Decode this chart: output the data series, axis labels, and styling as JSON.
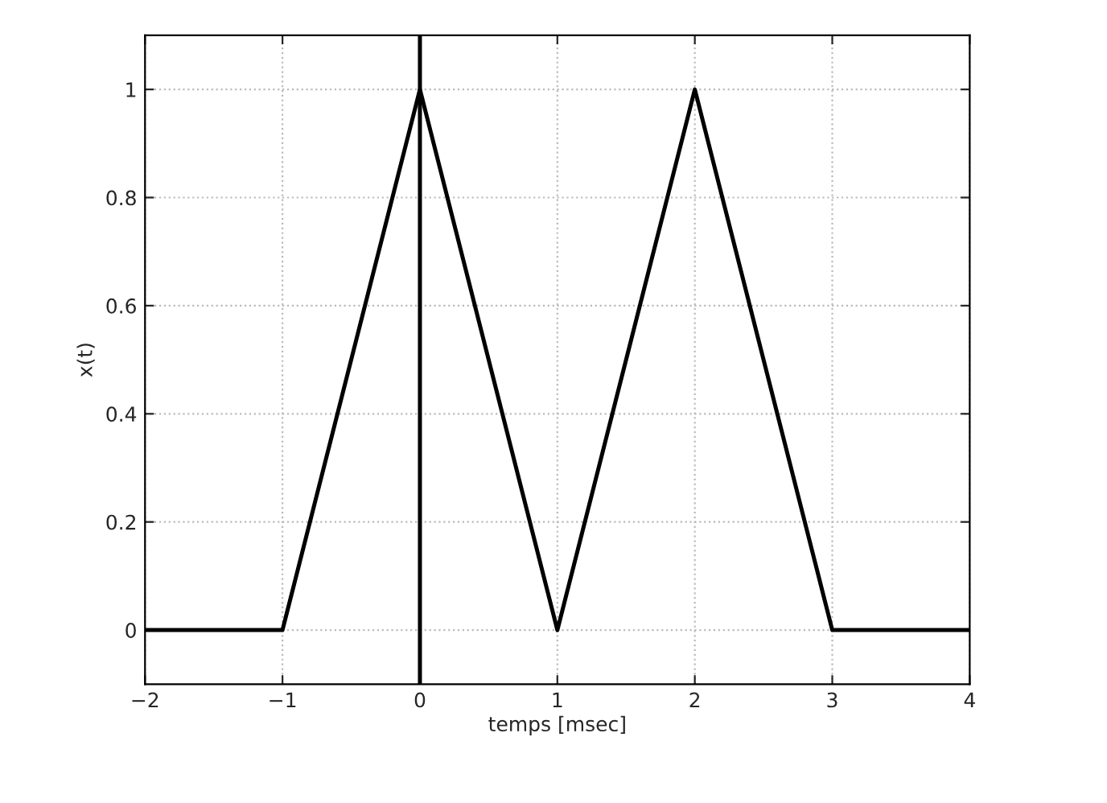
{
  "chart_data": {
    "type": "line",
    "xlabel": "temps [msec]",
    "ylabel": "x(t)",
    "x": [
      -2,
      -1,
      0,
      1,
      2,
      3,
      4
    ],
    "series": [
      {
        "color": "#000000",
        "values": [
          0,
          0,
          1,
          0,
          1,
          0,
          0
        ]
      }
    ],
    "xlim": [
      -2,
      4
    ],
    "xticks": [
      {
        "value": -2,
        "label": "−2"
      },
      {
        "value": -1,
        "label": "−1"
      },
      0,
      1,
      2,
      3,
      4
    ],
    "ylim": [
      -0.1,
      1.1
    ],
    "yticks": [
      0,
      0.2,
      0.4,
      0.6,
      0.8,
      1
    ],
    "ref_lines": [
      {
        "axis": "x",
        "value": 0,
        "color": "#000000",
        "line_style": "solid"
      }
    ],
    "grid": true,
    "line_style": "solid",
    "marker": "none"
  }
}
